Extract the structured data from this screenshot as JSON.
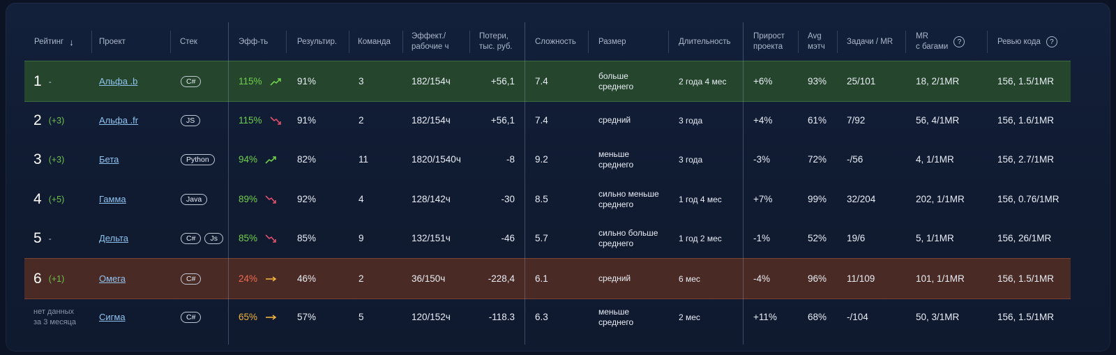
{
  "headers": {
    "rating": "Рейтинг",
    "sort_arrow": "↓",
    "project": "Проект",
    "stack": "Стек",
    "eff": "Эфф-ть",
    "result": "Результир.",
    "team": "Команда",
    "eff_hours_1": "Эффект./",
    "eff_hours_2": "рабочие ч",
    "losses_1": "Потери,",
    "losses_2": "тыс. руб.",
    "complexity": "Сложность",
    "size": "Размер",
    "duration": "Длительность",
    "growth_1": "Прирост",
    "growth_2": "проекта",
    "avg_1": "Avg",
    "avg_2": "мэтч",
    "tasks": "Задачи / MR",
    "mr_bugs_1": "MR",
    "mr_bugs_2": "с багами",
    "review": "Ревью кода",
    "help_icon": "?"
  },
  "rows": [
    {
      "rank": "1",
      "delta": "",
      "dash": "-",
      "nodata_1": "",
      "nodata_2": "",
      "project": "Альфа .b",
      "tags": [
        "C#"
      ],
      "eff": "115%",
      "eff_color": "#6fd04c",
      "trend": "up",
      "trend_color": "#6fd04c",
      "result": "91%",
      "team": "3",
      "hours": "182/154ч",
      "losses": "+56,1",
      "complexity": "7.4",
      "size_1": "больше",
      "size_2": "среднего",
      "duration": "2 года 4 мес",
      "growth": "+6%",
      "avg": "93%",
      "tasks": "25/101",
      "mr_bugs": "18, 2/1MR",
      "review": "156, 1.5/1MR",
      "highlight": "green"
    },
    {
      "rank": "2",
      "delta": "(+3)",
      "dash": "",
      "nodata_1": "",
      "nodata_2": "",
      "project": "Альфа .fr",
      "tags": [
        "JS"
      ],
      "eff": "115%",
      "eff_color": "#6fd04c",
      "trend": "down",
      "trend_color": "#e0506a",
      "result": "91%",
      "team": "2",
      "hours": "182/154ч",
      "losses": "+56,1",
      "complexity": "7.4",
      "size_1": "средний",
      "size_2": "",
      "duration": "3 года",
      "growth": "+4%",
      "avg": "61%",
      "tasks": "7/92",
      "mr_bugs": "56, 4/1MR",
      "review": "156, 1.6/1MR",
      "highlight": ""
    },
    {
      "rank": "3",
      "delta": "(+3)",
      "dash": "",
      "nodata_1": "",
      "nodata_2": "",
      "project": "Бета",
      "tags": [
        "Python"
      ],
      "eff": "94%",
      "eff_color": "#6fd04c",
      "trend": "up",
      "trend_color": "#6fd04c",
      "result": "82%",
      "team": "11",
      "hours": "1820/1540ч",
      "losses": "-8",
      "complexity": "9.2",
      "size_1": "меньше",
      "size_2": "среднего",
      "duration": "3 года",
      "growth": "-3%",
      "avg": "72%",
      "tasks": "-/56",
      "mr_bugs": "4, 1/1MR",
      "review": "156, 2.7/1MR",
      "highlight": ""
    },
    {
      "rank": "4",
      "delta": "(+5)",
      "dash": "",
      "nodata_1": "",
      "nodata_2": "",
      "project": "Гамма",
      "tags": [
        "Java"
      ],
      "eff": "89%",
      "eff_color": "#6fd04c",
      "trend": "down",
      "trend_color": "#e0506a",
      "result": "92%",
      "team": "4",
      "hours": "128/142ч",
      "losses": "-30",
      "complexity": "8.5",
      "size_1": "сильно меньше",
      "size_2": "среднего",
      "duration": "1 год 4 мес",
      "growth": "+7%",
      "avg": "99%",
      "tasks": "32/204",
      "mr_bugs": "202, 1/1MR",
      "review": "156, 0.76/1MR",
      "highlight": ""
    },
    {
      "rank": "5",
      "delta": "",
      "dash": "-",
      "nodata_1": "",
      "nodata_2": "",
      "project": "Дельта",
      "tags": [
        "C#",
        "Js"
      ],
      "eff": "85%",
      "eff_color": "#6fd04c",
      "trend": "down",
      "trend_color": "#e0506a",
      "result": "85%",
      "team": "9",
      "hours": "132/151ч",
      "losses": "-46",
      "complexity": "5.7",
      "size_1": "сильно больше",
      "size_2": "среднего",
      "duration": "1 год 2 мес",
      "growth": "-1%",
      "avg": "52%",
      "tasks": "19/6",
      "mr_bugs": "5, 1/1MR",
      "review": "156, 26/1MR",
      "highlight": ""
    },
    {
      "rank": "6",
      "delta": "(+1)",
      "dash": "",
      "nodata_1": "",
      "nodata_2": "",
      "project": "Омега",
      "tags": [
        "C#"
      ],
      "eff": "24%",
      "eff_color": "#f06a52",
      "trend": "flat",
      "trend_color": "#f0b23c",
      "result": "46%",
      "team": "2",
      "hours": "36/150ч",
      "losses": "-228,4",
      "complexity": "6.1",
      "size_1": "средний",
      "size_2": "",
      "duration": "6 мес",
      "growth": "-4%",
      "avg": "96%",
      "tasks": "11/109",
      "mr_bugs": "101, 1/1MR",
      "review": "156, 1.5/1MR",
      "highlight": "red"
    },
    {
      "rank": "",
      "delta": "",
      "dash": "",
      "nodata_1": "нет данных",
      "nodata_2": "за 3 месяца",
      "project": "Сигма",
      "tags": [
        "C#"
      ],
      "eff": "65%",
      "eff_color": "#f0b23c",
      "trend": "flat",
      "trend_color": "#f0b23c",
      "result": "57%",
      "team": "5",
      "hours": "120/152ч",
      "losses": "-118.3",
      "complexity": "6.3",
      "size_1": "меньше",
      "size_2": "среднего",
      "duration": "2 мес",
      "growth": "+11%",
      "avg": "68%",
      "tasks": "-/104",
      "mr_bugs": "50, 3/1MR",
      "review": "156, 1.5/1MR",
      "highlight": ""
    }
  ]
}
